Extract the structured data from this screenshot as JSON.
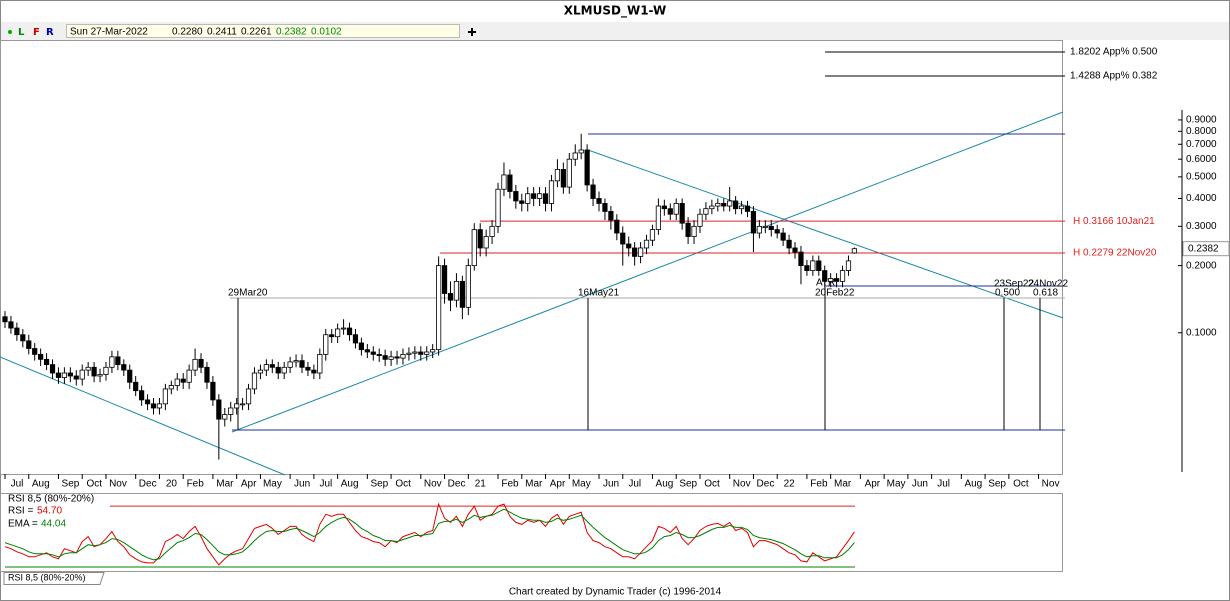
{
  "toolbar": {
    "modes": [
      "L",
      "F",
      "R"
    ],
    "fields": [
      "Sun 27-Mar-2022",
      "0.2280",
      "0.2411",
      "0.2261",
      "0.2382",
      "0.0102"
    ]
  },
  "footer": "Chart created by Dynamic Trader  (c) 1996-2014",
  "chart_data": [
    {
      "type": "candlestick",
      "title": "XLMUSD_W1-W",
      "log": true,
      "up_color": "#ffffff",
      "down_color": "#000000",
      "ylim": [
        0.0245,
        1.05
      ],
      "yticks": [
        {
          "value": 0.9,
          "label": "0.9000"
        },
        {
          "value": 0.8,
          "label": "0.8000"
        },
        {
          "value": 0.7,
          "label": "0.7000"
        },
        {
          "value": 0.6,
          "label": "0.6000"
        },
        {
          "value": 0.5,
          "label": "0.5000"
        },
        {
          "value": 0.4,
          "label": "0.4000"
        },
        {
          "value": 0.3,
          "label": "0.3000"
        },
        {
          "value": 0.2,
          "label": "0.2000"
        },
        {
          "value": 0.1,
          "label": "0.1000"
        }
      ],
      "current_price": {
        "value": 0.2382,
        "label": "0.2382"
      },
      "levels": [
        {
          "value": 0.3166,
          "label": "H 0.3166 10Jan21",
          "color": "#e02020"
        },
        {
          "value": 0.2279,
          "label": "H 0.2279 22Nov20",
          "color": "#e02020"
        }
      ],
      "annotations": [
        "1.8202 App% 0.500",
        "1.4288 App% 0.382",
        "ATR",
        "29Mar20",
        "16May21",
        "20Feb22",
        "23Sep22",
        "24Nov22",
        "0.500",
        "0.618"
      ],
      "categories": [
        "Jul",
        null,
        null,
        null,
        "Aug",
        null,
        null,
        null,
        null,
        "Sep",
        null,
        null,
        null,
        "Oct",
        null,
        null,
        null,
        "Nov",
        null,
        null,
        null,
        null,
        "Dec",
        null,
        null,
        null,
        "20",
        null,
        null,
        null,
        "Feb",
        null,
        null,
        null,
        null,
        "Mar",
        null,
        null,
        null,
        "Apr",
        null,
        null,
        null,
        "May",
        null,
        null,
        null,
        null,
        "Jun",
        null,
        null,
        null,
        "Jul",
        null,
        null,
        null,
        "Aug",
        null,
        null,
        null,
        null,
        "Sep",
        null,
        null,
        null,
        "Oct",
        null,
        null,
        null,
        null,
        "Nov",
        null,
        null,
        null,
        "Dec",
        null,
        null,
        null,
        "21",
        null,
        null,
        null,
        null,
        "Feb",
        null,
        null,
        null,
        "Mar",
        null,
        null,
        null,
        "Apr",
        null,
        null,
        null,
        "May",
        null,
        null,
        null,
        null,
        "Jun",
        null,
        null,
        null,
        "Jul",
        null,
        null,
        null,
        null,
        "Aug",
        null,
        null,
        null,
        "Sep",
        null,
        null,
        null,
        "Oct",
        null,
        null,
        null,
        null,
        "Nov",
        null,
        null,
        null,
        "Dec",
        null,
        null,
        null,
        "22",
        null,
        null,
        null,
        null,
        "Feb",
        null,
        null,
        null,
        "Mar",
        null,
        null,
        null,
        null,
        "Apr",
        null,
        null,
        null,
        "May",
        null,
        null,
        null,
        "Jun",
        null,
        null,
        null,
        "Jul",
        null,
        null,
        null,
        null,
        "Aug",
        null,
        null,
        null,
        "Sep",
        null,
        null,
        null,
        "Oct",
        null,
        null,
        null,
        null,
        "Nov",
        null,
        null,
        null,
        null
      ],
      "open": [
        0.118,
        0.112,
        0.105,
        0.098,
        0.092,
        0.085,
        0.08,
        0.076,
        0.072,
        0.066,
        0.063,
        0.066,
        0.064,
        0.062,
        0.068,
        0.07,
        0.064,
        0.065,
        0.07,
        0.078,
        0.072,
        0.068,
        0.06,
        0.055,
        0.05,
        0.048,
        0.046,
        0.048,
        0.056,
        0.058,
        0.062,
        0.06,
        0.068,
        0.076,
        0.07,
        0.06,
        0.05,
        0.041,
        0.043,
        0.046,
        0.048,
        0.048,
        0.056,
        0.066,
        0.068,
        0.072,
        0.07,
        0.066,
        0.07,
        0.074,
        0.075,
        0.07,
        0.068,
        0.066,
        0.08,
        0.098,
        0.096,
        0.104,
        0.105,
        0.098,
        0.09,
        0.084,
        0.082,
        0.08,
        0.079,
        0.076,
        0.078,
        0.077,
        0.08,
        0.081,
        0.082,
        0.08,
        0.082,
        0.084,
        0.2,
        0.15,
        0.14,
        0.17,
        0.13,
        0.2,
        0.29,
        0.24,
        0.27,
        0.3,
        0.44,
        0.51,
        0.43,
        0.39,
        0.38,
        0.42,
        0.4,
        0.42,
        0.38,
        0.48,
        0.54,
        0.45,
        0.6,
        0.64,
        0.66,
        0.46,
        0.4,
        0.38,
        0.35,
        0.32,
        0.28,
        0.25,
        0.24,
        0.22,
        0.24,
        0.26,
        0.29,
        0.37,
        0.36,
        0.34,
        0.38,
        0.31,
        0.27,
        0.3,
        0.34,
        0.36,
        0.37,
        0.38,
        0.37,
        0.39,
        0.36,
        0.37,
        0.35,
        0.28,
        0.3,
        0.3,
        0.29,
        0.28,
        0.26,
        0.24,
        0.23,
        0.2,
        0.19,
        0.21,
        0.19,
        0.17,
        0.175,
        0.17,
        0.19,
        0.228,
        null,
        null,
        null,
        null,
        null,
        null,
        null,
        null,
        null,
        null,
        null,
        null,
        null,
        null,
        null,
        null,
        null,
        null,
        null,
        null,
        null,
        null,
        null,
        null,
        null,
        null,
        null,
        null,
        null,
        null,
        null,
        null,
        null,
        null,
        null
      ],
      "high": [
        0.125,
        0.119,
        0.111,
        0.104,
        0.098,
        0.09,
        0.085,
        0.081,
        0.076,
        0.07,
        0.07,
        0.07,
        0.068,
        0.072,
        0.074,
        0.074,
        0.069,
        0.074,
        0.083,
        0.083,
        0.076,
        0.072,
        0.064,
        0.058,
        0.053,
        0.051,
        0.051,
        0.059,
        0.061,
        0.066,
        0.066,
        0.072,
        0.085,
        0.081,
        0.074,
        0.064,
        0.053,
        0.046,
        0.049,
        0.051,
        0.051,
        0.059,
        0.07,
        0.072,
        0.076,
        0.076,
        0.074,
        0.074,
        0.078,
        0.08,
        0.08,
        0.074,
        0.072,
        0.085,
        0.104,
        0.104,
        0.11,
        0.115,
        0.111,
        0.104,
        0.095,
        0.089,
        0.087,
        0.085,
        0.084,
        0.083,
        0.083,
        0.085,
        0.086,
        0.087,
        0.087,
        0.087,
        0.089,
        0.22,
        0.215,
        0.17,
        0.185,
        0.18,
        0.215,
        0.31,
        0.31,
        0.29,
        0.32,
        0.47,
        0.58,
        0.54,
        0.46,
        0.42,
        0.45,
        0.45,
        0.45,
        0.45,
        0.51,
        0.6,
        0.58,
        0.64,
        0.7,
        0.78,
        0.7,
        0.49,
        0.43,
        0.4,
        0.37,
        0.34,
        0.3,
        0.27,
        0.255,
        0.255,
        0.275,
        0.305,
        0.4,
        0.395,
        0.38,
        0.4,
        0.4,
        0.33,
        0.32,
        0.36,
        0.385,
        0.395,
        0.4,
        0.4,
        0.45,
        0.41,
        0.39,
        0.39,
        0.37,
        0.32,
        0.32,
        0.32,
        0.305,
        0.295,
        0.275,
        0.255,
        0.245,
        0.212,
        0.222,
        0.222,
        0.2,
        0.185,
        0.185,
        0.2,
        0.222,
        0.2411,
        null,
        null,
        null,
        null,
        null,
        null,
        null,
        null,
        null,
        null,
        null,
        null,
        null,
        null,
        null,
        null,
        null,
        null,
        null,
        null,
        null,
        null,
        null,
        null,
        null,
        null,
        null,
        null,
        null,
        null,
        null,
        null,
        null,
        null,
        null
      ],
      "low": [
        0.105,
        0.099,
        0.092,
        0.086,
        0.08,
        0.075,
        0.071,
        0.068,
        0.062,
        0.059,
        0.059,
        0.06,
        0.058,
        0.058,
        0.064,
        0.06,
        0.06,
        0.061,
        0.066,
        0.068,
        0.064,
        0.056,
        0.052,
        0.047,
        0.045,
        0.043,
        0.043,
        0.045,
        0.053,
        0.055,
        0.056,
        0.056,
        0.064,
        0.066,
        0.056,
        0.047,
        0.027,
        0.038,
        0.04,
        0.043,
        0.045,
        0.045,
        0.053,
        0.062,
        0.064,
        0.066,
        0.062,
        0.062,
        0.066,
        0.07,
        0.066,
        0.064,
        0.062,
        0.062,
        0.075,
        0.09,
        0.09,
        0.098,
        0.092,
        0.085,
        0.079,
        0.077,
        0.075,
        0.074,
        0.071,
        0.071,
        0.072,
        0.072,
        0.075,
        0.076,
        0.075,
        0.075,
        0.077,
        0.079,
        0.135,
        0.125,
        0.13,
        0.115,
        0.12,
        0.19,
        0.22,
        0.22,
        0.25,
        0.28,
        0.41,
        0.4,
        0.36,
        0.35,
        0.35,
        0.37,
        0.37,
        0.35,
        0.35,
        0.45,
        0.42,
        0.42,
        0.56,
        0.6,
        0.43,
        0.37,
        0.35,
        0.32,
        0.29,
        0.26,
        0.2,
        0.22,
        0.2,
        0.205,
        0.225,
        0.245,
        0.275,
        0.335,
        0.32,
        0.32,
        0.29,
        0.25,
        0.25,
        0.28,
        0.32,
        0.34,
        0.35,
        0.35,
        0.35,
        0.34,
        0.34,
        0.33,
        0.23,
        0.265,
        0.28,
        0.27,
        0.265,
        0.245,
        0.225,
        0.215,
        0.165,
        0.18,
        0.18,
        0.18,
        0.16,
        0.16,
        0.16,
        0.16,
        0.18,
        0.2261,
        null,
        null,
        null,
        null,
        null,
        null,
        null,
        null,
        null,
        null,
        null,
        null,
        null,
        null,
        null,
        null,
        null,
        null,
        null,
        null,
        null,
        null,
        null,
        null,
        null,
        null,
        null,
        null,
        null,
        null,
        null,
        null,
        null,
        null,
        null
      ],
      "close": [
        0.112,
        0.105,
        0.098,
        0.092,
        0.085,
        0.08,
        0.076,
        0.072,
        0.066,
        0.063,
        0.066,
        0.064,
        0.062,
        0.068,
        0.07,
        0.064,
        0.065,
        0.07,
        0.078,
        0.072,
        0.068,
        0.06,
        0.055,
        0.05,
        0.048,
        0.046,
        0.048,
        0.056,
        0.058,
        0.062,
        0.06,
        0.068,
        0.076,
        0.07,
        0.06,
        0.05,
        0.041,
        0.043,
        0.046,
        0.048,
        0.048,
        0.056,
        0.066,
        0.068,
        0.072,
        0.07,
        0.066,
        0.07,
        0.074,
        0.075,
        0.07,
        0.068,
        0.066,
        0.08,
        0.098,
        0.096,
        0.104,
        0.105,
        0.098,
        0.09,
        0.084,
        0.082,
        0.08,
        0.079,
        0.076,
        0.078,
        0.077,
        0.08,
        0.081,
        0.082,
        0.08,
        0.082,
        0.084,
        0.2,
        0.15,
        0.14,
        0.17,
        0.13,
        0.2,
        0.29,
        0.24,
        0.27,
        0.3,
        0.44,
        0.51,
        0.43,
        0.39,
        0.38,
        0.42,
        0.4,
        0.42,
        0.38,
        0.48,
        0.54,
        0.45,
        0.6,
        0.64,
        0.66,
        0.46,
        0.4,
        0.38,
        0.35,
        0.32,
        0.28,
        0.25,
        0.24,
        0.22,
        0.24,
        0.26,
        0.29,
        0.37,
        0.36,
        0.34,
        0.38,
        0.31,
        0.27,
        0.3,
        0.34,
        0.36,
        0.37,
        0.38,
        0.37,
        0.39,
        0.36,
        0.37,
        0.35,
        0.28,
        0.3,
        0.3,
        0.29,
        0.28,
        0.26,
        0.24,
        0.23,
        0.2,
        0.19,
        0.21,
        0.19,
        0.17,
        0.175,
        0.17,
        0.19,
        0.21,
        0.2382,
        null,
        null,
        null,
        null,
        null,
        null,
        null,
        null,
        null,
        null,
        null,
        null,
        null,
        null,
        null,
        null,
        null,
        null,
        null,
        null,
        null,
        null,
        null,
        null,
        null,
        null,
        null,
        null,
        null,
        null,
        null,
        null,
        null,
        null,
        null
      ]
    },
    {
      "type": "line",
      "title": "RSI 8,5 (80%-20%)",
      "ylim": [
        16,
        92
      ],
      "levels": [
        {
          "value": 80,
          "color": "#e02020"
        },
        {
          "value": 20,
          "color": "#008000"
        }
      ],
      "series": [
        {
          "name": "RSI =",
          "color": "#e00000",
          "value_label": "54.70",
          "values": [
            40,
            38,
            35,
            33,
            30,
            30,
            32,
            34,
            30,
            28,
            38,
            36,
            34,
            45,
            50,
            40,
            42,
            48,
            55,
            45,
            40,
            32,
            28,
            25,
            24,
            24,
            30,
            45,
            48,
            52,
            48,
            55,
            60,
            50,
            38,
            30,
            22,
            28,
            33,
            36,
            38,
            48,
            58,
            60,
            62,
            58,
            52,
            56,
            60,
            60,
            52,
            48,
            45,
            62,
            72,
            70,
            72,
            72,
            64,
            56,
            50,
            48,
            45,
            44,
            40,
            46,
            44,
            50,
            52,
            54,
            50,
            54,
            56,
            82,
            68,
            64,
            70,
            60,
            72,
            80,
            66,
            70,
            72,
            80,
            82,
            70,
            64,
            62,
            66,
            64,
            66,
            60,
            68,
            72,
            62,
            70,
            72,
            74,
            54,
            46,
            44,
            40,
            38,
            34,
            30,
            30,
            28,
            34,
            40,
            46,
            60,
            58,
            54,
            60,
            48,
            42,
            48,
            56,
            60,
            62,
            63,
            60,
            64,
            56,
            58,
            54,
            40,
            46,
            46,
            44,
            42,
            38,
            34,
            32,
            26,
            25,
            34,
            30,
            26,
            28,
            30,
            38,
            46,
            54.7
          ]
        },
        {
          "name": "EMA =",
          "color": "#008000",
          "value_label": "44.04",
          "values": [
            44,
            42,
            40,
            38,
            35,
            33,
            33,
            33,
            32,
            30,
            33,
            34,
            34,
            38,
            42,
            41,
            42,
            44,
            48,
            47,
            44,
            40,
            36,
            32,
            29,
            27,
            28,
            34,
            39,
            44,
            46,
            49,
            53,
            52,
            47,
            41,
            35,
            32,
            32,
            33,
            35,
            40,
            46,
            51,
            55,
            56,
            55,
            55,
            57,
            58,
            56,
            53,
            50,
            54,
            60,
            64,
            67,
            69,
            67,
            63,
            58,
            55,
            51,
            49,
            46,
            46,
            45,
            47,
            49,
            51,
            51,
            52,
            53,
            63,
            65,
            65,
            67,
            64,
            67,
            71,
            69,
            70,
            71,
            74,
            77,
            74,
            71,
            68,
            67,
            66,
            66,
            64,
            65,
            68,
            66,
            67,
            69,
            71,
            65,
            59,
            54,
            49,
            45,
            41,
            37,
            35,
            33,
            33,
            35,
            39,
            46,
            50,
            51,
            54,
            52,
            49,
            49,
            51,
            54,
            57,
            59,
            59,
            61,
            59,
            59,
            57,
            51,
            49,
            48,
            47,
            45,
            43,
            40,
            37,
            33,
            30,
            31,
            31,
            29,
            29,
            29,
            32,
            37,
            44.04
          ]
        }
      ]
    }
  ]
}
